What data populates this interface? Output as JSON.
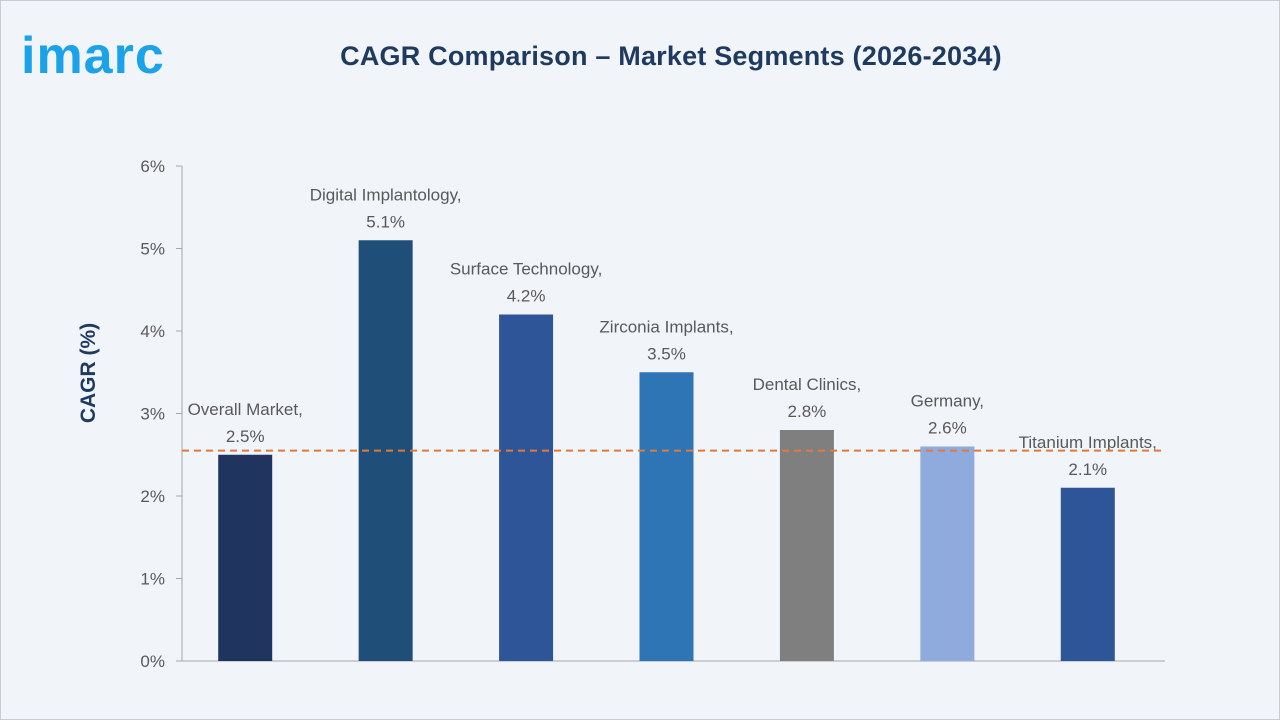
{
  "brand": {
    "logo_text": "imarc",
    "logo_color": "#1aa3e8"
  },
  "chart_data": {
    "type": "bar",
    "title": "CAGR Comparison – Market Segments (2026-2034)",
    "ylabel": "CAGR (%)",
    "xlabel": "",
    "ylim": [
      0,
      6
    ],
    "yticks": [
      "0%",
      "1%",
      "2%",
      "3%",
      "4%",
      "5%",
      "6%"
    ],
    "grid": false,
    "reference_line": {
      "value": 2.55,
      "style": "dashed",
      "color": "#e07a3c"
    },
    "categories": [
      "Overall Market",
      "Digital Implantology",
      "Surface Technology",
      "Zirconia Implants",
      "Dental Clinics",
      "Germany",
      "Titanium Implants"
    ],
    "values": [
      2.5,
      5.1,
      4.2,
      3.5,
      2.8,
      2.6,
      2.1
    ],
    "data_labels": [
      [
        "Overall Market,",
        "2.5%"
      ],
      [
        "Digital Implantology,",
        "5.1%"
      ],
      [
        "Surface Technology,",
        "4.2%"
      ],
      [
        "Zirconia Implants,",
        "3.5%"
      ],
      [
        "Dental Clinics,",
        "2.8%"
      ],
      [
        "Germany,",
        "2.6%"
      ],
      [
        "Titanium Implants,",
        "2.1%"
      ]
    ],
    "colors": [
      "#1f3560",
      "#1f4e79",
      "#2e5597",
      "#2e75b6",
      "#7f7f7f",
      "#8faadc",
      "#2e5597"
    ]
  }
}
